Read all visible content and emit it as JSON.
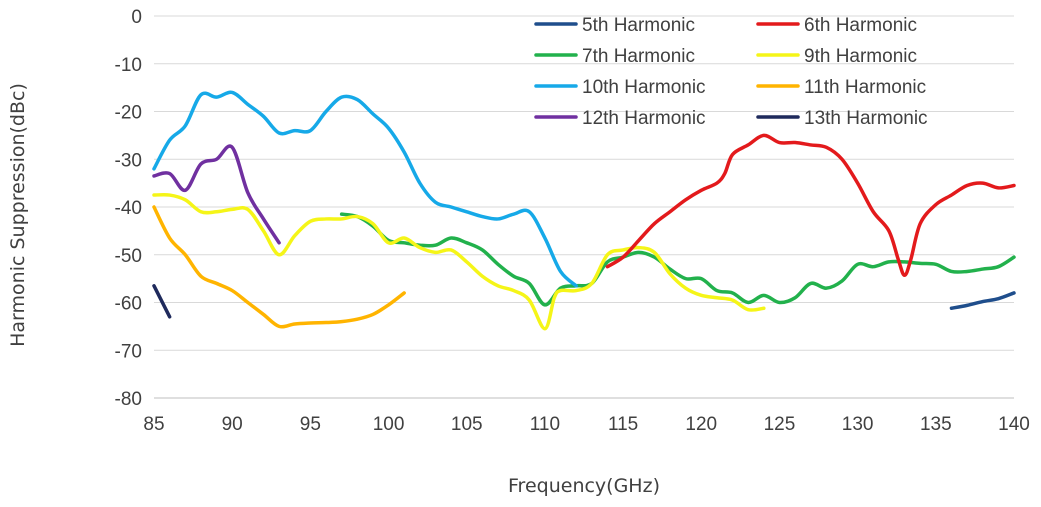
{
  "chart_data": {
    "type": "line",
    "title": "",
    "xlabel": "Frequency(GHz)",
    "ylabel": "Harmonic Suppression(dBc)",
    "xlim": [
      85,
      140
    ],
    "ylim": [
      -80,
      0
    ],
    "x_ticks": [
      85,
      90,
      95,
      100,
      105,
      110,
      115,
      120,
      125,
      130,
      135,
      140
    ],
    "y_ticks": [
      0,
      -10,
      -20,
      -30,
      -40,
      -50,
      -60,
      -70,
      -80
    ],
    "grid": "horizontal",
    "legend_position": "top-right",
    "series": [
      {
        "name": "5th Harmonic",
        "color": "#1f4e8c",
        "points": [
          [
            136,
            -61.2
          ],
          [
            137,
            -60.6
          ],
          [
            138,
            -59.8
          ],
          [
            139,
            -59.2
          ],
          [
            140,
            -58.0
          ]
        ]
      },
      {
        "name": "6th Harmonic",
        "color": "#e31a1c",
        "points": [
          [
            114,
            -52.5
          ],
          [
            115,
            -50.5
          ],
          [
            116,
            -47
          ],
          [
            117,
            -43.5
          ],
          [
            118,
            -41
          ],
          [
            119,
            -38.5
          ],
          [
            120,
            -36.5
          ],
          [
            121,
            -35
          ],
          [
            121.5,
            -33
          ],
          [
            122,
            -29
          ],
          [
            123,
            -27
          ],
          [
            124,
            -25
          ],
          [
            125,
            -26.5
          ],
          [
            126,
            -26.5
          ],
          [
            127,
            -27
          ],
          [
            128,
            -27.5
          ],
          [
            129,
            -30
          ],
          [
            130,
            -35
          ],
          [
            131,
            -41
          ],
          [
            132,
            -45
          ],
          [
            132.6,
            -51
          ],
          [
            133,
            -54.3
          ],
          [
            133.4,
            -51
          ],
          [
            134,
            -43.5
          ],
          [
            135,
            -39.5
          ],
          [
            136,
            -37.5
          ],
          [
            137,
            -35.5
          ],
          [
            138,
            -35
          ],
          [
            139,
            -36
          ],
          [
            140,
            -35.5
          ]
        ]
      },
      {
        "name": "7th Harmonic",
        "color": "#22b14c",
        "points": [
          [
            97,
            -41.5
          ],
          [
            98,
            -42
          ],
          [
            99,
            -44
          ],
          [
            100,
            -47
          ],
          [
            101,
            -47.5
          ],
          [
            102,
            -48
          ],
          [
            103,
            -48
          ],
          [
            104,
            -46.5
          ],
          [
            105,
            -47.5
          ],
          [
            106,
            -49
          ],
          [
            107,
            -52
          ],
          [
            108,
            -54.5
          ],
          [
            109,
            -56
          ],
          [
            110,
            -60.5
          ],
          [
            111,
            -57
          ],
          [
            112,
            -56.5
          ],
          [
            113,
            -56
          ],
          [
            114,
            -51.5
          ],
          [
            115,
            -50.5
          ],
          [
            116,
            -49.5
          ],
          [
            117,
            -50.5
          ],
          [
            118,
            -53
          ],
          [
            119,
            -55
          ],
          [
            120,
            -55
          ],
          [
            121,
            -57.5
          ],
          [
            122,
            -58
          ],
          [
            123,
            -60
          ],
          [
            124,
            -58.5
          ],
          [
            125,
            -60
          ],
          [
            126,
            -59
          ],
          [
            127,
            -56
          ],
          [
            128,
            -57
          ],
          [
            129,
            -55.5
          ],
          [
            130,
            -52
          ],
          [
            131,
            -52.5
          ],
          [
            132,
            -51.5
          ],
          [
            133,
            -51.5
          ],
          [
            134,
            -51.8
          ],
          [
            135,
            -52
          ],
          [
            136,
            -53.5
          ],
          [
            137,
            -53.5
          ],
          [
            138,
            -53
          ],
          [
            139,
            -52.5
          ],
          [
            140,
            -50.5
          ]
        ]
      },
      {
        "name": "9th Harmonic",
        "color": "#f5f518",
        "points": [
          [
            85,
            -37.5
          ],
          [
            86,
            -37.5
          ],
          [
            87,
            -38.5
          ],
          [
            88,
            -41
          ],
          [
            89,
            -41
          ],
          [
            90,
            -40.5
          ],
          [
            91,
            -40.5
          ],
          [
            92,
            -45
          ],
          [
            93,
            -50
          ],
          [
            94,
            -46
          ],
          [
            95,
            -43
          ],
          [
            96,
            -42.5
          ],
          [
            97,
            -42.5
          ],
          [
            98,
            -42
          ],
          [
            99,
            -43.5
          ],
          [
            100,
            -47.5
          ],
          [
            101,
            -46.5
          ],
          [
            102,
            -48.5
          ],
          [
            103,
            -49.5
          ],
          [
            104,
            -49
          ],
          [
            105,
            -51.5
          ],
          [
            106,
            -54.5
          ],
          [
            107,
            -56.5
          ],
          [
            108,
            -57.5
          ],
          [
            109,
            -59.5
          ],
          [
            110,
            -65.5
          ],
          [
            110.6,
            -59
          ],
          [
            111,
            -57.5
          ],
          [
            112,
            -57.5
          ],
          [
            113,
            -56
          ],
          [
            114,
            -50
          ],
          [
            115,
            -49
          ],
          [
            116,
            -48.5
          ],
          [
            117,
            -49.5
          ],
          [
            118,
            -54
          ],
          [
            119,
            -57
          ],
          [
            120,
            -58.5
          ],
          [
            121,
            -59
          ],
          [
            122,
            -59.5
          ],
          [
            123,
            -61.5
          ],
          [
            124,
            -61.2
          ]
        ]
      },
      {
        "name": "10th Harmonic",
        "color": "#16a9e8",
        "points": [
          [
            85,
            -32
          ],
          [
            86,
            -26
          ],
          [
            87,
            -23
          ],
          [
            88,
            -16.5
          ],
          [
            89,
            -17
          ],
          [
            90,
            -16
          ],
          [
            91,
            -18.5
          ],
          [
            92,
            -21
          ],
          [
            93,
            -24.5
          ],
          [
            94,
            -24
          ],
          [
            95,
            -24
          ],
          [
            96,
            -20
          ],
          [
            97,
            -17
          ],
          [
            98,
            -17.5
          ],
          [
            99,
            -20.5
          ],
          [
            100,
            -23.5
          ],
          [
            101,
            -28.5
          ],
          [
            102,
            -35
          ],
          [
            103,
            -39
          ],
          [
            104,
            -40
          ],
          [
            105,
            -41
          ],
          [
            106,
            -42
          ],
          [
            107,
            -42.5
          ],
          [
            108,
            -41.5
          ],
          [
            109,
            -41
          ],
          [
            110,
            -46.5
          ],
          [
            111,
            -53.5
          ],
          [
            112,
            -56.5
          ]
        ]
      },
      {
        "name": "11th Harmonic",
        "color": "#ffb400",
        "points": [
          [
            85,
            -40
          ],
          [
            86,
            -46.5
          ],
          [
            87,
            -50
          ],
          [
            88,
            -54.5
          ],
          [
            89,
            -56
          ],
          [
            90,
            -57.5
          ],
          [
            91,
            -60
          ],
          [
            92,
            -62.5
          ],
          [
            93,
            -65
          ],
          [
            94,
            -64.5
          ],
          [
            95,
            -64.3
          ],
          [
            96,
            -64.2
          ],
          [
            97,
            -64
          ],
          [
            98,
            -63.5
          ],
          [
            99,
            -62.5
          ],
          [
            100,
            -60.5
          ],
          [
            101,
            -58
          ]
        ]
      },
      {
        "name": "12th Harmonic",
        "color": "#7030a0",
        "points": [
          [
            85,
            -33.5
          ],
          [
            86,
            -33
          ],
          [
            87,
            -36.5
          ],
          [
            88,
            -31
          ],
          [
            89,
            -30
          ],
          [
            90,
            -27.5
          ],
          [
            91,
            -37
          ],
          [
            92,
            -42.5
          ],
          [
            93,
            -47.5
          ]
        ]
      },
      {
        "name": "13th Harmonic",
        "color": "#1f2a5c",
        "points": [
          [
            85,
            -56.5
          ],
          [
            86,
            -63
          ]
        ]
      }
    ]
  }
}
